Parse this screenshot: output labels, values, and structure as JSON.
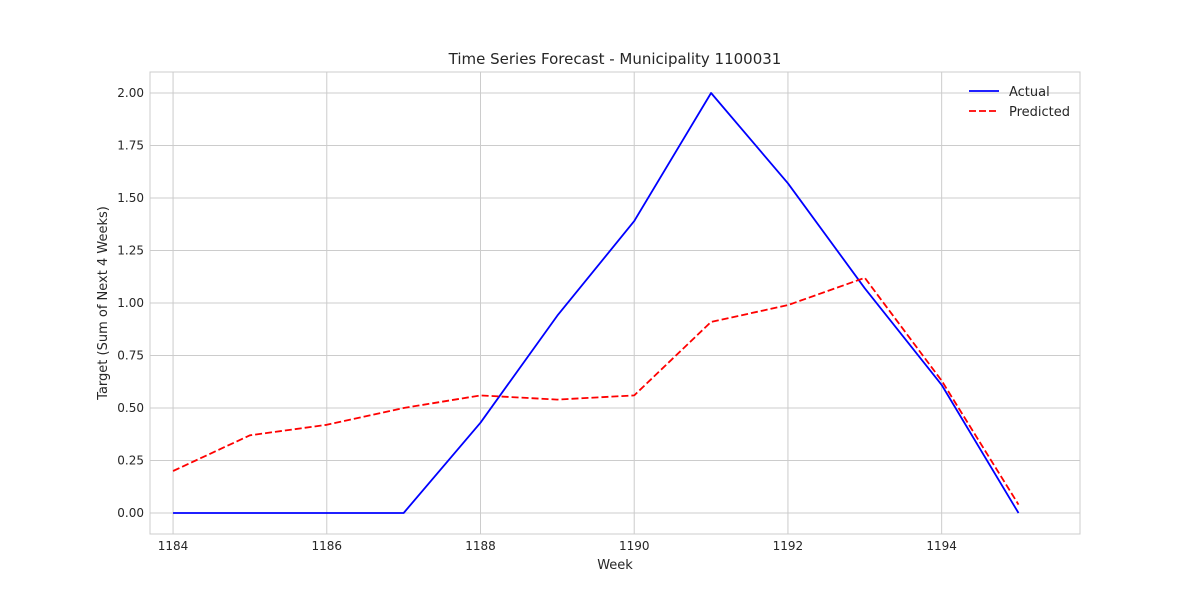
{
  "chart_data": {
    "type": "line",
    "title": "Time Series Forecast - Municipality 1100031",
    "xlabel": "Week",
    "ylabel": "Target (Sum of Next 4 Weeks)",
    "x": [
      1184,
      1185,
      1186,
      1187,
      1188,
      1189,
      1190,
      1191,
      1192,
      1193,
      1194,
      1195
    ],
    "xlim": [
      1183.7,
      1195.8
    ],
    "ylim": [
      -0.1,
      2.1
    ],
    "xticks": [
      1184,
      1186,
      1188,
      1190,
      1192,
      1194
    ],
    "yticks": [
      0.0,
      0.25,
      0.5,
      0.75,
      1.0,
      1.25,
      1.5,
      1.75,
      2.0
    ],
    "xtick_labels": [
      "1184",
      "1186",
      "1188",
      "1190",
      "1192",
      "1194"
    ],
    "ytick_labels": [
      "0.00",
      "0.25",
      "0.50",
      "0.75",
      "1.00",
      "1.25",
      "1.50",
      "1.75",
      "2.00"
    ],
    "grid": true,
    "legend_position": "top-right",
    "series": [
      {
        "name": "Actual",
        "color": "#0000ff",
        "style": "solid",
        "values": [
          0.0,
          0.0,
          0.0,
          0.0,
          0.43,
          0.94,
          1.39,
          2.0,
          1.57,
          1.07,
          0.61,
          0.0
        ]
      },
      {
        "name": "Predicted",
        "color": "#ff0000",
        "style": "dashed",
        "values": [
          0.2,
          0.37,
          0.42,
          0.5,
          0.56,
          0.54,
          0.56,
          0.91,
          0.99,
          1.12,
          0.63,
          0.04
        ]
      }
    ]
  }
}
